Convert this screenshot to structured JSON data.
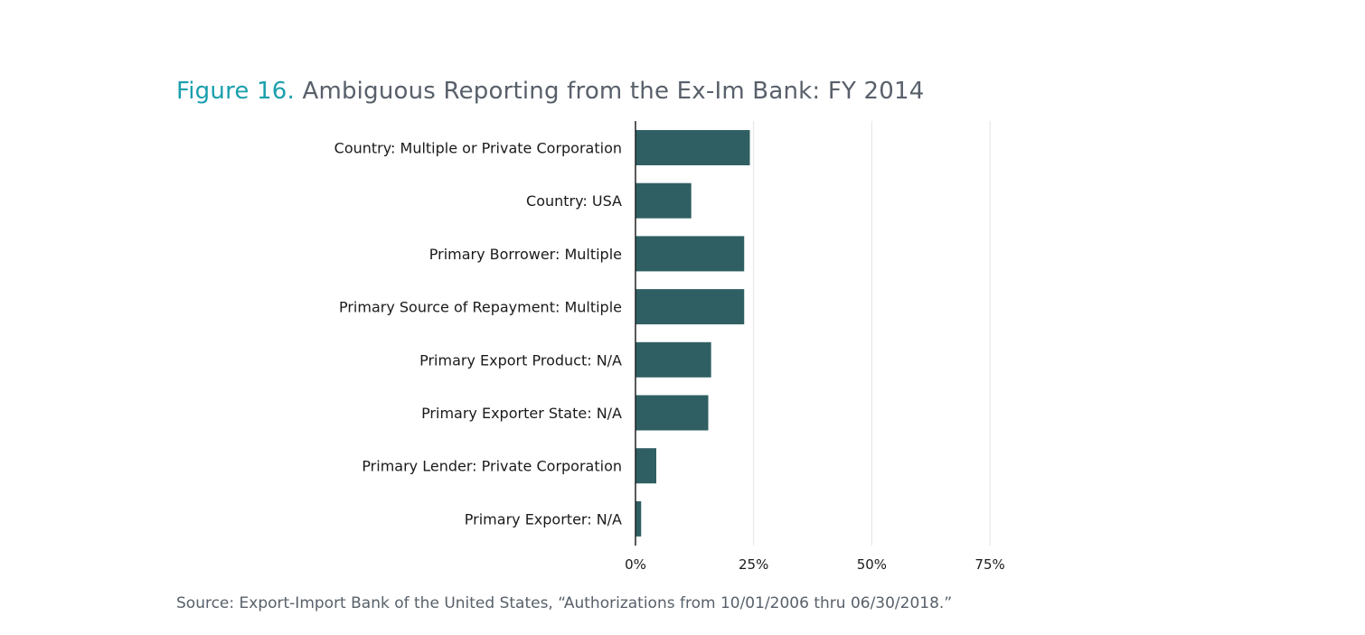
{
  "figure": {
    "number": "Figure 16.",
    "title": "Ambiguous Reporting from the Ex-Im Bank: FY 2014",
    "source": "Source: Export-Import Bank of the United States, “Authorizations from 10/01/2006 thru 06/30/2018.”"
  },
  "colors": {
    "bar": "#2f5f63",
    "figure_number": "#1a9fad",
    "title_text": "#58606a",
    "gridline": "#e3e3e3",
    "axis": "#222222",
    "label_text": "#1a1a1a"
  },
  "chart_data": {
    "type": "bar",
    "orientation": "horizontal",
    "categories": [
      "Country: Multiple or Private Corporation",
      "Country: USA",
      "Primary Borrower: Multiple",
      "Primary Source of Repayment: Multiple",
      "Primary Export Product: N/A",
      "Primary Exporter State: N/A",
      "Primary Lender: Private Corporation",
      "Primary Exporter: N/A"
    ],
    "values": [
      24.2,
      11.8,
      23.0,
      23.0,
      16.0,
      15.4,
      4.4,
      1.2
    ],
    "unit": "%",
    "xlim": [
      0,
      75
    ],
    "xticks": [
      0,
      25,
      50,
      75
    ],
    "xtick_labels": [
      "0%",
      "25%",
      "50%",
      "75%"
    ],
    "grid": "vertical",
    "legend": "none"
  }
}
